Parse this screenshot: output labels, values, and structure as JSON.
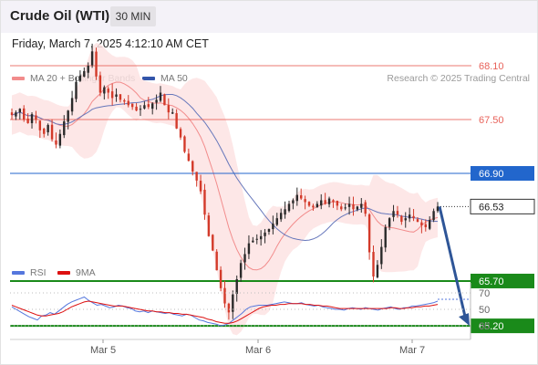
{
  "header": {
    "instrument": "Crude Oil (WTI)",
    "timeframe": "30 MIN",
    "datetime": "Friday, March 7, 2025 4:12:10 AM CET",
    "credit": "Research © 2025 Trading Central"
  },
  "colors": {
    "bollinger": "#f28c8c",
    "bollinger_fill": "#fde3e3",
    "ma50": "#3355aa",
    "price_up": "#2a2a2a",
    "price_down": "#d33a2a",
    "resistance": "#e8625a",
    "pivot": "#2266cc",
    "support": "#1a8a1a",
    "rsi": "#5577dd",
    "rsi_ma": "#dd1111"
  },
  "chart_data": [
    {
      "type": "candlestick",
      "legend": [
        {
          "name": "MA 20 + Bollinger Bands",
          "color": "#f28c8c"
        },
        {
          "name": "MA 50",
          "color": "#3355aa"
        }
      ],
      "x_ticks": [
        "Mar 5",
        "Mar 6",
        "Mar 7"
      ],
      "ylim": [
        65.1,
        68.4
      ],
      "levels": [
        {
          "value": 68.1,
          "label": "68.10",
          "kind": "resistance"
        },
        {
          "value": 67.5,
          "label": "67.50",
          "kind": "resistance"
        },
        {
          "value": 66.9,
          "label": "66.90",
          "kind": "pivot"
        },
        {
          "value": 65.7,
          "label": "65.70",
          "kind": "support"
        },
        {
          "value": 65.2,
          "label": "65.20",
          "kind": "support"
        }
      ],
      "last_price": {
        "value": 66.53,
        "label": "66.53"
      },
      "forecast_target": 65.2,
      "close_path": [
        67.55,
        67.58,
        67.62,
        67.5,
        67.46,
        67.56,
        67.5,
        67.38,
        67.34,
        67.44,
        67.28,
        67.22,
        67.34,
        67.48,
        67.6,
        67.74,
        67.92,
        67.99,
        68.04,
        68.1,
        68.26,
        67.98,
        67.8,
        67.86,
        67.8,
        67.74,
        67.78,
        67.72,
        67.7,
        67.66,
        67.64,
        67.6,
        67.62,
        67.66,
        67.64,
        67.68,
        67.72,
        67.8,
        67.66,
        67.58,
        67.58,
        67.4,
        67.3,
        67.14,
        67.04,
        66.92,
        66.82,
        66.7,
        66.44,
        66.2,
        66.04,
        65.82,
        65.62,
        65.45,
        65.35,
        65.55,
        65.72,
        65.9,
        66.0,
        66.12,
        66.15,
        66.17,
        66.2,
        66.24,
        66.28,
        66.34,
        66.4,
        66.46,
        66.5,
        66.56,
        66.6,
        66.66,
        66.62,
        66.58,
        66.54,
        66.52,
        66.56,
        66.6,
        66.56,
        66.62,
        66.58,
        66.54,
        66.5,
        66.52,
        66.56,
        66.5,
        66.53,
        66.56,
        66.45,
        66.02,
        65.75,
        65.88,
        66.08,
        66.3,
        66.4,
        66.48,
        66.44,
        66.36,
        66.4,
        66.44,
        66.4,
        66.36,
        66.32,
        66.3,
        66.38,
        66.48,
        66.53
      ],
      "rsi": {
        "legend": [
          {
            "name": "RSI",
            "color": "#5577dd"
          },
          {
            "name": "9MA",
            "color": "#dd1111"
          }
        ],
        "ylim": [
          20,
          80
        ],
        "levels": [
          70,
          50,
          30
        ],
        "level_labels": [
          "70",
          "50",
          "30"
        ],
        "rsi_path": [
          53,
          50,
          47,
          44,
          41,
          39,
          37,
          42,
          43,
          46,
          44,
          48,
          52,
          56,
          59,
          61,
          63,
          65,
          61,
          58,
          55,
          56,
          54,
          52,
          53,
          55,
          54,
          52,
          51,
          48,
          47,
          48,
          46,
          48,
          47,
          46,
          45,
          46,
          44,
          43,
          42,
          44,
          43,
          40,
          37,
          36,
          34,
          33,
          32,
          30,
          31,
          33,
          37,
          41,
          45,
          50,
          53,
          54,
          55,
          55,
          55,
          56,
          57,
          58,
          59,
          58,
          57,
          57,
          58,
          56,
          55,
          54,
          55,
          53,
          52,
          51,
          50,
          50,
          49,
          51,
          52,
          51,
          50,
          52,
          51,
          50,
          49,
          51,
          52,
          53,
          51,
          50,
          52,
          52,
          54,
          54,
          55,
          56,
          57,
          58,
          60
        ],
        "rsi_ma_path": [
          55,
          53,
          51,
          49,
          47,
          45,
          43,
          42,
          42,
          43,
          44,
          45,
          47,
          50,
          53,
          55,
          57,
          59,
          60,
          59,
          58,
          57,
          56,
          55,
          54,
          54,
          54,
          53,
          52,
          51,
          50,
          49,
          48,
          48,
          47,
          47,
          46,
          46,
          45,
          45,
          44,
          44,
          43,
          42,
          41,
          40,
          38,
          37,
          35,
          34,
          33,
          33,
          34,
          36,
          39,
          42,
          45,
          48,
          51,
          53,
          54,
          55,
          55,
          56,
          56,
          57,
          57,
          57,
          57,
          56,
          56,
          55,
          55,
          54,
          54,
          53,
          52,
          51,
          51,
          51,
          51,
          51,
          51,
          51,
          51,
          51,
          51,
          51,
          51,
          52,
          52,
          51,
          51,
          52,
          52,
          53,
          53,
          54,
          54,
          55,
          56
        ]
      }
    }
  ]
}
